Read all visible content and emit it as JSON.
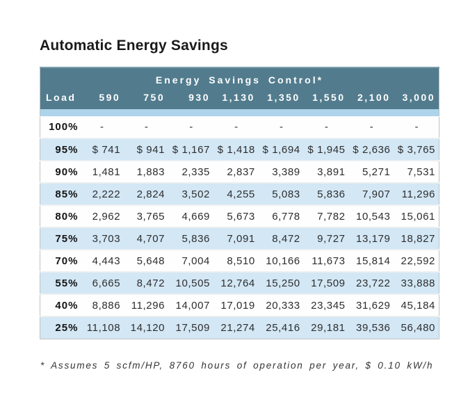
{
  "page": {
    "title": "Automatic Energy Savings",
    "footnote": "* Assumes 5 scfm/HP, 8760 hours of operation per year, $ 0.10 kW/h"
  },
  "chart_data": {
    "type": "table",
    "title": "Automatic Energy Savings",
    "group_header": "Energy Savings Control*",
    "columns": [
      "Load",
      "590",
      "750",
      "930",
      "1,130",
      "1,350",
      "1,550",
      "2,100",
      "3,000"
    ],
    "rows": [
      [
        "100%",
        "-",
        "-",
        "-",
        "-",
        "-",
        "-",
        "-",
        "-"
      ],
      [
        "95%",
        "$ 741",
        "$ 941",
        "$ 1,167",
        "$ 1,418",
        "$ 1,694",
        "$ 1,945",
        "$ 2,636",
        "$ 3,765"
      ],
      [
        "90%",
        "1,481",
        "1,883",
        "2,335",
        "2,837",
        "3,389",
        "3,891",
        "5,271",
        "7,531"
      ],
      [
        "85%",
        "2,222",
        "2,824",
        "3,502",
        "4,255",
        "5,083",
        "5,836",
        "7,907",
        "11,296"
      ],
      [
        "80%",
        "2,962",
        "3,765",
        "4,669",
        "5,673",
        "6,778",
        "7,782",
        "10,543",
        "15,061"
      ],
      [
        "75%",
        "3,703",
        "4,707",
        "5,836",
        "7,091",
        "8,472",
        "9,727",
        "13,179",
        "18,827"
      ],
      [
        "70%",
        "4,443",
        "5,648",
        "7,004",
        "8,510",
        "10,166",
        "11,673",
        "15,814",
        "22,592"
      ],
      [
        "55%",
        "6,665",
        "8,472",
        "10,505",
        "12,764",
        "15,250",
        "17,509",
        "23,722",
        "33,888"
      ],
      [
        "40%",
        "8,886",
        "11,296",
        "14,007",
        "17,019",
        "20,333",
        "23,345",
        "31,629",
        "45,184"
      ],
      [
        "25%",
        "11,108",
        "14,120",
        "17,509",
        "21,274",
        "25,416",
        "29,181",
        "39,536",
        "56,480"
      ]
    ],
    "footnote": "* Assumes 5 scfm/HP, 8760 hours of operation per year, $ 0.10 kW/h",
    "layout": {
      "row_striping": "alternating white / light blue, starting white at 100%"
    }
  },
  "colors": {
    "header_teal": "#527c8e",
    "strip_blue": "#aed4eb",
    "row_blue": "#d3e7f5",
    "row_white": "#fefefe"
  }
}
